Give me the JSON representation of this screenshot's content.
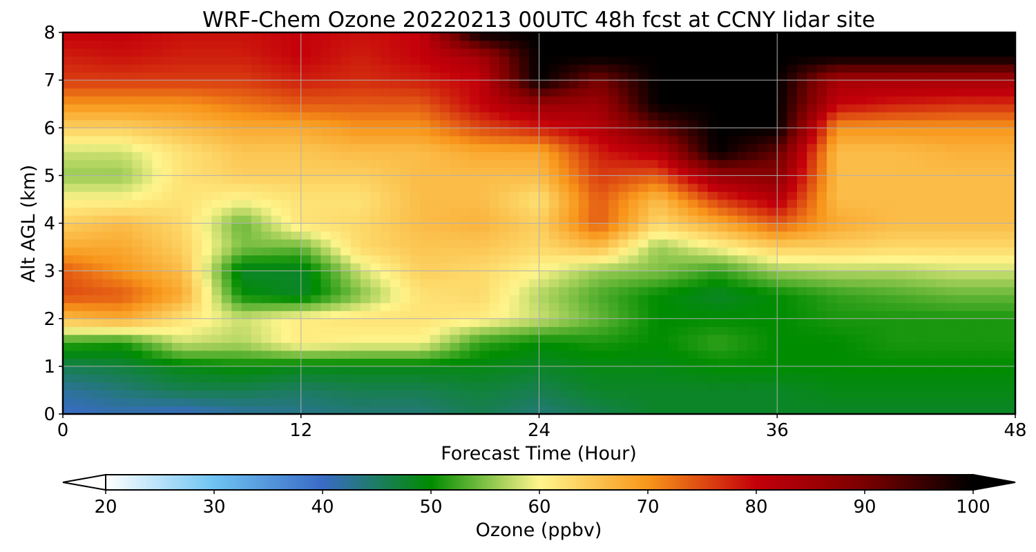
{
  "chart_data": {
    "type": "heatmap",
    "title": "WRF-Chem Ozone  20220213 00UTC 48h fcst at CCNY lidar site",
    "xlabel": "Forecast Time (Hour)",
    "ylabel": "Alt AGL (km)",
    "xlim": [
      0,
      48
    ],
    "ylim": [
      0,
      8
    ],
    "x_ticks": [
      0,
      12,
      24,
      36,
      48
    ],
    "y_ticks": [
      0,
      1,
      2,
      3,
      4,
      5,
      6,
      7,
      8
    ],
    "grid": true,
    "x": [
      0,
      3,
      6,
      9,
      12,
      15,
      18,
      21,
      24,
      27,
      30,
      33,
      36,
      39,
      42,
      45,
      48
    ],
    "y": [
      0,
      0.5,
      1,
      1.5,
      2,
      2.5,
      3,
      3.5,
      4,
      4.5,
      5,
      5.5,
      6,
      6.5,
      7,
      7.5,
      8
    ],
    "z": [
      [
        40,
        41,
        40,
        42,
        43,
        44,
        44,
        46,
        44,
        46,
        48,
        48,
        48,
        48,
        48,
        48,
        48
      ],
      [
        42,
        44,
        46,
        46,
        45,
        46,
        46,
        47,
        46,
        48,
        48,
        48,
        48,
        49,
        49,
        49,
        49
      ],
      [
        46,
        47,
        49,
        50,
        49,
        49,
        49,
        49,
        48,
        49,
        49,
        50,
        50,
        50,
        50,
        50,
        50
      ],
      [
        52,
        51,
        58,
        57,
        61,
        60,
        60,
        52,
        50,
        51,
        50,
        52,
        50,
        50,
        51,
        51,
        51
      ],
      [
        66,
        68,
        62,
        58,
        61,
        62,
        62,
        61,
        58,
        54,
        50,
        50,
        50,
        51,
        51,
        51,
        51
      ],
      [
        75,
        74,
        68,
        50,
        48,
        55,
        62,
        63,
        57,
        53,
        50,
        48,
        50,
        52,
        53,
        54,
        54
      ],
      [
        74,
        70,
        66,
        48,
        48,
        58,
        64,
        63,
        60,
        56,
        55,
        52,
        56,
        57,
        57,
        58,
        58
      ],
      [
        68,
        68,
        64,
        55,
        54,
        63,
        65,
        65,
        63,
        66,
        56,
        60,
        64,
        64,
        63,
        63,
        63
      ],
      [
        64,
        66,
        63,
        54,
        62,
        63,
        66,
        67,
        64,
        74,
        63,
        68,
        74,
        68,
        66,
        66,
        66
      ],
      [
        60,
        60,
        62,
        60,
        62,
        62,
        66,
        66,
        62,
        74,
        66,
        76,
        82,
        66,
        66,
        66,
        66
      ],
      [
        56,
        56,
        62,
        64,
        64,
        64,
        66,
        66,
        66,
        76,
        74,
        86,
        88,
        66,
        66,
        66,
        66
      ],
      [
        58,
        58,
        62,
        65,
        65,
        66,
        66,
        68,
        68,
        78,
        82,
        100,
        92,
        66,
        66,
        67,
        67
      ],
      [
        64,
        64,
        66,
        68,
        68,
        70,
        70,
        75,
        78,
        82,
        92,
        100,
        100,
        70,
        70,
        70,
        70
      ],
      [
        70,
        70,
        70,
        72,
        74,
        74,
        74,
        80,
        86,
        85,
        100,
        100,
        100,
        80,
        78,
        77,
        77
      ],
      [
        76,
        76,
        76,
        76,
        78,
        77,
        78,
        80,
        100,
        90,
        100,
        100,
        100,
        84,
        84,
        84,
        84
      ],
      [
        78,
        79,
        78,
        78,
        80,
        78,
        80,
        84,
        100,
        100,
        100,
        100,
        100,
        100,
        100,
        100,
        100
      ],
      [
        80,
        80,
        79,
        79,
        80,
        79,
        80,
        100,
        100,
        100,
        100,
        100,
        100,
        100,
        100,
        100,
        100
      ]
    ],
    "colorbar": {
      "label": "Ozone  (ppbv)",
      "range": [
        20,
        100
      ],
      "ticks": [
        20,
        30,
        40,
        50,
        60,
        70,
        80,
        90,
        100
      ],
      "extend": "both",
      "colors": {
        "20": "#ffffff",
        "30": "#6ec3f2",
        "40": "#3a6bc6",
        "50": "#008c00",
        "60": "#fff58c",
        "70": "#f8961a",
        "80": "#c4000a",
        "90": "#7a0000",
        "100": "#000000"
      }
    }
  }
}
